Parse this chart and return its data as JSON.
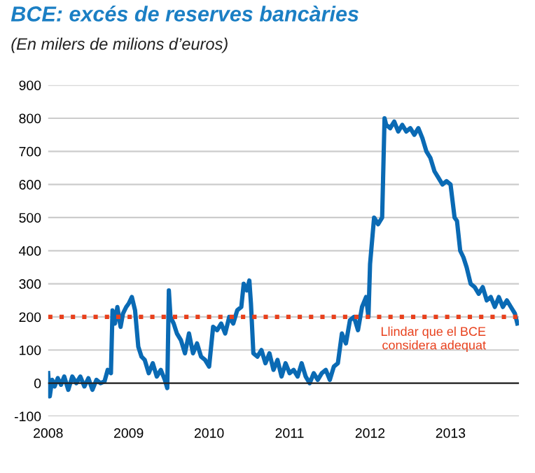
{
  "chart_data": {
    "type": "line",
    "title": "BCE: excés de reserves bancàries",
    "subtitle": "(En milers de milions d’euros)",
    "x": [
      2008.0,
      2008.02,
      2008.05,
      2008.08,
      2008.12,
      2008.16,
      2008.2,
      2008.25,
      2008.3,
      2008.35,
      2008.4,
      2008.45,
      2008.5,
      2008.55,
      2008.6,
      2008.65,
      2008.7,
      2008.74,
      2008.78,
      2008.8,
      2008.83,
      2008.86,
      2008.9,
      2008.93,
      2008.97,
      2009.0,
      2009.04,
      2009.08,
      2009.12,
      2009.16,
      2009.2,
      2009.25,
      2009.3,
      2009.35,
      2009.4,
      2009.45,
      2009.48,
      2009.5,
      2009.52,
      2009.56,
      2009.6,
      2009.65,
      2009.7,
      2009.75,
      2009.8,
      2009.85,
      2009.9,
      2009.95,
      2010.0,
      2010.05,
      2010.1,
      2010.15,
      2010.2,
      2010.25,
      2010.3,
      2010.35,
      2010.4,
      2010.43,
      2010.47,
      2010.5,
      2010.52,
      2010.55,
      2010.6,
      2010.65,
      2010.7,
      2010.75,
      2010.8,
      2010.85,
      2010.9,
      2010.95,
      2011.0,
      2011.05,
      2011.1,
      2011.15,
      2011.2,
      2011.25,
      2011.3,
      2011.35,
      2011.4,
      2011.45,
      2011.5,
      2011.55,
      2011.6,
      2011.65,
      2011.7,
      2011.75,
      2011.8,
      2011.85,
      2011.9,
      2011.95,
      2011.98,
      2012.0,
      2012.05,
      2012.1,
      2012.15,
      2012.18,
      2012.2,
      2012.25,
      2012.3,
      2012.35,
      2012.4,
      2012.45,
      2012.5,
      2012.55,
      2012.6,
      2012.65,
      2012.7,
      2012.75,
      2012.8,
      2012.85,
      2012.9,
      2012.95,
      2013.0,
      2013.05,
      2013.08,
      2013.12,
      2013.16,
      2013.2,
      2013.25,
      2013.3,
      2013.35,
      2013.4,
      2013.45,
      2013.5,
      2013.55,
      2013.6,
      2013.65,
      2013.7,
      2013.75,
      2013.8,
      2013.83
    ],
    "series": [
      {
        "color": "#0a6ab4",
        "values": [
          30,
          -40,
          10,
          -10,
          15,
          -5,
          20,
          -20,
          20,
          0,
          20,
          -10,
          15,
          -20,
          10,
          0,
          5,
          40,
          30,
          220,
          180,
          230,
          170,
          210,
          230,
          240,
          260,
          220,
          110,
          80,
          70,
          30,
          60,
          20,
          40,
          10,
          -15,
          280,
          200,
          180,
          150,
          130,
          90,
          150,
          90,
          120,
          80,
          70,
          50,
          170,
          160,
          180,
          150,
          200,
          180,
          220,
          230,
          300,
          280,
          310,
          240,
          90,
          80,
          100,
          60,
          90,
          40,
          70,
          20,
          60,
          30,
          40,
          20,
          60,
          20,
          0,
          30,
          10,
          30,
          40,
          10,
          50,
          60,
          150,
          120,
          190,
          200,
          160,
          230,
          260,
          200,
          360,
          500,
          480,
          500,
          800,
          780,
          770,
          790,
          760,
          780,
          760,
          770,
          750,
          770,
          740,
          700,
          680,
          640,
          620,
          600,
          610,
          600,
          500,
          490,
          400,
          380,
          350,
          300,
          290,
          270,
          290,
          250,
          260,
          230,
          260,
          230,
          250,
          230,
          210,
          180
        ]
      }
    ],
    "xlim": [
      2008,
      2013.85
    ],
    "ylim": [
      -100,
      900
    ],
    "xticks": [
      {
        "value": 2008,
        "label": "2008"
      },
      {
        "value": 2009,
        "label": "2009"
      },
      {
        "value": 2010,
        "label": "2010"
      },
      {
        "value": 2011,
        "label": "2011"
      },
      {
        "value": 2012,
        "label": "2012"
      },
      {
        "value": 2013,
        "label": "2013"
      }
    ],
    "yticks": [
      -100,
      0,
      100,
      200,
      300,
      400,
      500,
      600,
      700,
      800,
      900
    ],
    "grid": "y",
    "line_style": "solid",
    "ref_lines": [
      {
        "axis": "y",
        "value": 200,
        "label": "Llindar que el BCE\nconsidera adequat",
        "color": "#e8401c",
        "line_style": "dotted"
      }
    ]
  }
}
